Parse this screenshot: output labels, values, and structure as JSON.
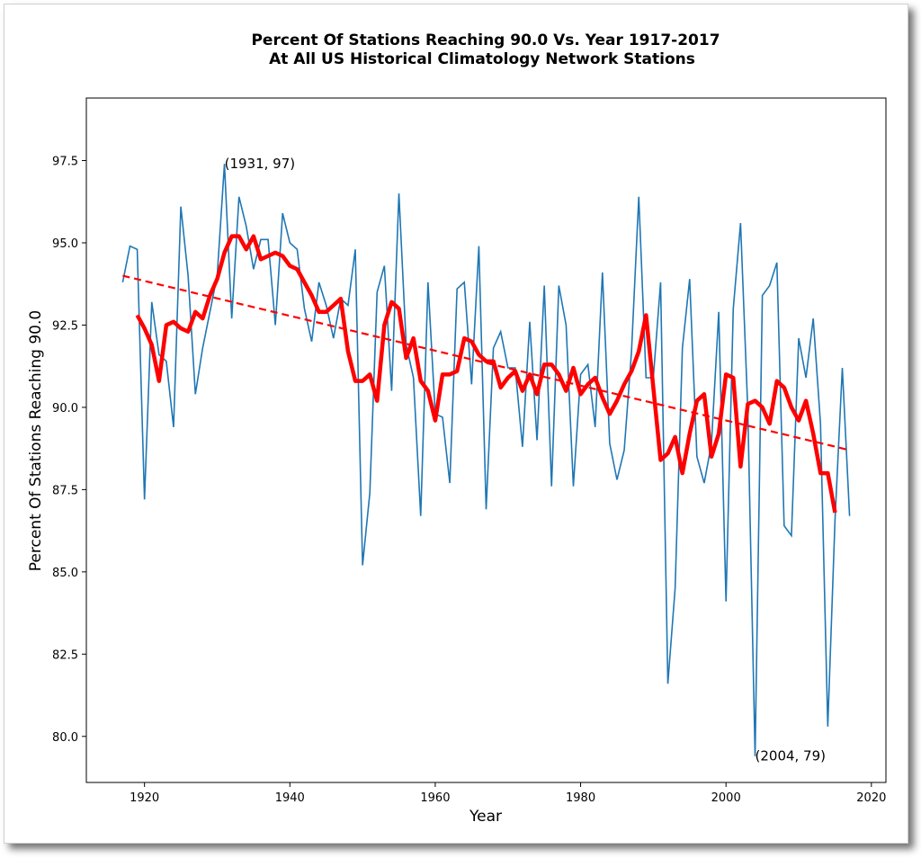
{
  "chart_data": {
    "type": "line",
    "title_line1": "Percent Of Stations Reaching 90.0 Vs. Year 1917-2017",
    "title_line2": "At All US Historical Climatology Network Stations",
    "xlabel": "Year",
    "ylabel": "Percent Of Stations Reaching 90.0",
    "xlim": [
      1912,
      2022
    ],
    "ylim": [
      78.6,
      99.4
    ],
    "xticks": [
      1920,
      1940,
      1960,
      1980,
      2000,
      2020
    ],
    "xtick_labels": [
      "1920",
      "1940",
      "1960",
      "1980",
      "2000",
      "2020"
    ],
    "yticks": [
      80.0,
      82.5,
      85.0,
      87.5,
      90.0,
      92.5,
      95.0,
      97.5
    ],
    "ytick_labels": [
      "80.0",
      "82.5",
      "85.0",
      "87.5",
      "90.0",
      "92.5",
      "95.0",
      "97.5"
    ],
    "grid": false,
    "colors": {
      "annual": "#1f77b4",
      "smoothed": "#ff0000",
      "trend": "#ff0000"
    },
    "series": [
      {
        "style": "annual",
        "x_start": 1917,
        "values": [
          93.8,
          94.9,
          94.8,
          87.2,
          93.2,
          91.6,
          91.4,
          89.4,
          96.1,
          94.0,
          90.4,
          91.8,
          92.9,
          94.0,
          97.4,
          92.7,
          96.4,
          95.5,
          94.2,
          95.1,
          95.1,
          92.5,
          95.9,
          95.0,
          94.8,
          93.0,
          92.0,
          93.8,
          93.1,
          92.1,
          93.3,
          93.1,
          94.8,
          85.2,
          87.4,
          93.5,
          94.3,
          90.5,
          96.5,
          91.9,
          90.9,
          86.7,
          93.8,
          89.8,
          89.7,
          87.7,
          93.6,
          93.8,
          90.7,
          94.9,
          86.9,
          91.8,
          92.3,
          91.2,
          91.2,
          88.8,
          92.6,
          89.0,
          93.7,
          87.6,
          93.7,
          92.5,
          87.6,
          91.0,
          91.3,
          89.4,
          94.1,
          88.9,
          87.8,
          88.7,
          91.7,
          96.4,
          90.9,
          90.9,
          93.8,
          81.6,
          84.5,
          91.8,
          93.9,
          88.5,
          87.7,
          88.9,
          92.9,
          84.1,
          93.0,
          95.6,
          89.9,
          79.4,
          93.4,
          93.7,
          94.4,
          86.4,
          86.1,
          92.1,
          90.9,
          92.7,
          89.5,
          80.3,
          86.6,
          91.2,
          86.7
        ]
      },
      {
        "style": "smoothed",
        "x_start": 1919,
        "values": [
          92.8,
          92.4,
          91.9,
          90.8,
          92.5,
          92.6,
          92.4,
          92.3,
          92.9,
          92.7,
          93.4,
          93.9,
          94.7,
          95.2,
          95.2,
          94.8,
          95.2,
          94.5,
          94.6,
          94.7,
          94.6,
          94.3,
          94.2,
          93.8,
          93.4,
          92.9,
          92.9,
          93.1,
          93.3,
          91.7,
          90.8,
          90.8,
          91.0,
          90.2,
          92.5,
          93.2,
          93.0,
          91.5,
          92.1,
          90.8,
          90.5,
          89.6,
          91.0,
          91.0,
          91.1,
          92.1,
          92.0,
          91.6,
          91.4,
          91.4,
          90.6,
          90.9,
          91.1,
          90.5,
          91.0,
          90.4,
          91.3,
          91.3,
          91.0,
          90.5,
          91.2,
          90.4,
          90.7,
          90.9,
          90.3,
          89.8,
          90.2,
          90.7,
          91.1,
          91.7,
          92.8,
          90.6,
          88.4,
          88.6,
          89.1,
          88.0,
          89.2,
          90.2,
          90.4,
          88.5,
          89.2,
          91.0,
          90.9,
          88.2,
          90.1,
          90.2,
          90.0,
          89.5,
          90.8,
          90.6,
          90.0,
          89.6,
          90.2,
          89.2,
          88.0,
          88.0,
          86.8
        ]
      },
      {
        "style": "trend",
        "x": [
          1917,
          2017
        ],
        "values": [
          94.0,
          88.7
        ]
      }
    ],
    "annotations": [
      {
        "label": "(1931, 97)",
        "x": 1931,
        "y": 97.4
      },
      {
        "label": "(2004, 79)",
        "x": 2004,
        "y": 79.4
      }
    ]
  }
}
